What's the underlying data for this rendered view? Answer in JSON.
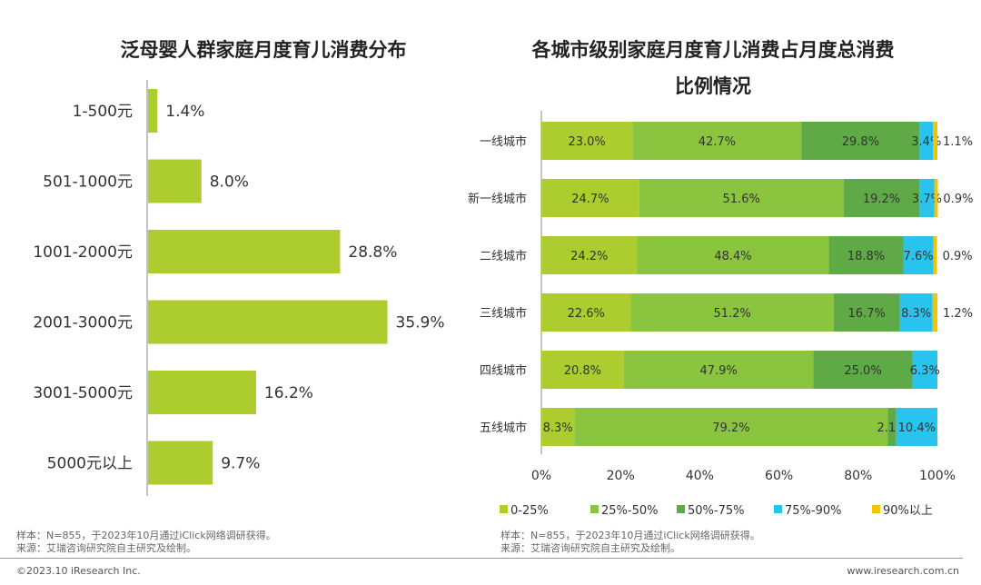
{
  "left_chart": {
    "title": "泛母婴人群家庭月度育儿消费分布",
    "chart_data": {
      "type": "bar",
      "orientation": "horizontal",
      "categories": [
        "1-500元",
        "501-1000元",
        "1001-2000元",
        "2001-3000元",
        "3001-5000元",
        "5000元以上"
      ],
      "values": [
        1.4,
        8.0,
        28.8,
        35.9,
        16.2,
        9.7
      ],
      "labels": [
        "1.4%",
        "8.0%",
        "28.8%",
        "35.9%",
        "16.2%",
        "9.7%"
      ],
      "color": "#adcc2e",
      "xlim": [
        0,
        40
      ]
    },
    "note_sample": "样本：N=855，于2023年10月通过iClick网络调研获得。",
    "note_source": "来源：艾瑞咨询研究院自主研究及绘制。"
  },
  "right_chart": {
    "title_line1": "各城市级别家庭月度育儿消费占月度总消费",
    "title_line2": "比例情况",
    "chart_data": {
      "type": "bar",
      "orientation": "horizontal",
      "stacked": true,
      "categories": [
        "一线城市",
        "新一线城市",
        "二线城市",
        "三线城市",
        "四线城市",
        "五线城市"
      ],
      "series": [
        {
          "name": "0-25%",
          "color": "#adcc2e",
          "values": [
            23.0,
            24.7,
            24.2,
            22.6,
            20.8,
            8.3
          ],
          "labels": [
            "23.0%",
            "24.7%",
            "24.2%",
            "22.6%",
            "20.8%",
            "8.3%"
          ]
        },
        {
          "name": "25%-50%",
          "color": "#8bc43f",
          "values": [
            42.7,
            51.6,
            48.4,
            51.2,
            47.9,
            79.2
          ],
          "labels": [
            "42.7%",
            "51.6%",
            "48.4%",
            "51.2%",
            "47.9%",
            "79.2%"
          ]
        },
        {
          "name": "50%-75%",
          "color": "#5faa46",
          "values": [
            29.8,
            19.2,
            18.8,
            16.7,
            25.0,
            2.1
          ],
          "labels": [
            "29.8%",
            "19.2%",
            "18.8%",
            "16.7%",
            "25.0%",
            "2.1%"
          ]
        },
        {
          "name": "75%-90%",
          "color": "#29c4ee",
          "values": [
            3.4,
            3.7,
            7.6,
            8.3,
            6.3,
            10.4
          ],
          "labels": [
            "3.4%",
            "3.7%",
            "7.6%",
            "8.3%",
            "6.3%",
            "10.4%"
          ]
        },
        {
          "name": "90%以上",
          "color": "#f5c400",
          "values": [
            1.1,
            0.9,
            0.9,
            1.2,
            0.0,
            0.0
          ],
          "labels": [
            "1.1%",
            "0.9%",
            "0.9%",
            "1.2%",
            "",
            ""
          ]
        }
      ],
      "xticks": [
        "0%",
        "20%",
        "40%",
        "60%",
        "80%",
        "100%"
      ],
      "xlim": [
        0,
        100
      ]
    },
    "note_sample": "样本：N=855，于2023年10月通过iClick网络调研获得。",
    "note_source": "来源：艾瑞咨询研究院自主研究及绘制。"
  },
  "footer": {
    "copyright": "©2023.10 iResearch Inc.",
    "website": "www.iresearch.com.cn"
  }
}
